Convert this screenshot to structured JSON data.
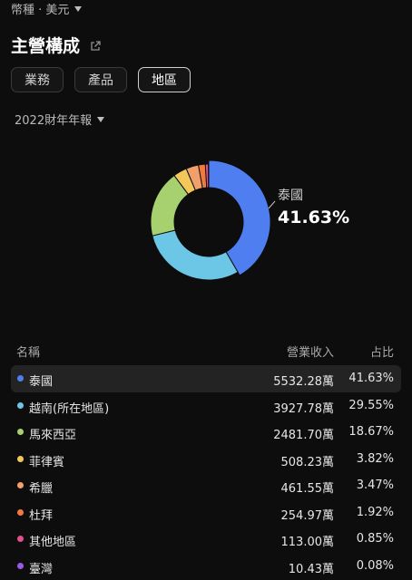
{
  "header": {
    "currency_label": "幣種 · 美元",
    "title": "主營構成"
  },
  "tabs": [
    {
      "label": "業務"
    },
    {
      "label": "產品"
    },
    {
      "label": "地區"
    }
  ],
  "period_label": "2022財年年報",
  "donut": {
    "label_name": "泰國",
    "label_pct": "41.63%"
  },
  "table": {
    "headers": {
      "name": "名稱",
      "revenue": "營業收入",
      "share": "占比"
    },
    "rows": [
      {
        "name": "泰國",
        "revenue": "5532.28萬",
        "share": "41.63%",
        "color": "#4f7ef0"
      },
      {
        "name": "越南(所在地區)",
        "revenue": "3927.78萬",
        "share": "29.55%",
        "color": "#6cc6e6"
      },
      {
        "name": "馬來西亞",
        "revenue": "2481.70萬",
        "share": "18.67%",
        "color": "#a6d16e"
      },
      {
        "name": "菲律賓",
        "revenue": "508.23萬",
        "share": "3.82%",
        "color": "#f3c85a"
      },
      {
        "name": "希臘",
        "revenue": "461.55萬",
        "share": "3.47%",
        "color": "#f2a06b"
      },
      {
        "name": "杜拜",
        "revenue": "254.97萬",
        "share": "1.92%",
        "color": "#f07b3f"
      },
      {
        "name": "其他地區",
        "revenue": "113.00萬",
        "share": "0.85%",
        "color": "#e2508d"
      },
      {
        "name": "臺灣",
        "revenue": "10.43萬",
        "share": "0.08%",
        "color": "#9b5ae6"
      }
    ]
  },
  "chart_data": {
    "type": "pie",
    "categories": [
      "泰國",
      "越南(所在地區)",
      "馬來西亞",
      "菲律賓",
      "希臘",
      "杜拜",
      "其他地區",
      "臺灣"
    ],
    "values": [
      41.63,
      29.55,
      18.67,
      3.82,
      3.47,
      1.92,
      0.85,
      0.08
    ],
    "colors": [
      "#4f7ef0",
      "#6cc6e6",
      "#a6d16e",
      "#f3c85a",
      "#f2a06b",
      "#f07b3f",
      "#e2508d",
      "#9b5ae6"
    ],
    "title": "",
    "highlighted": "泰國"
  }
}
